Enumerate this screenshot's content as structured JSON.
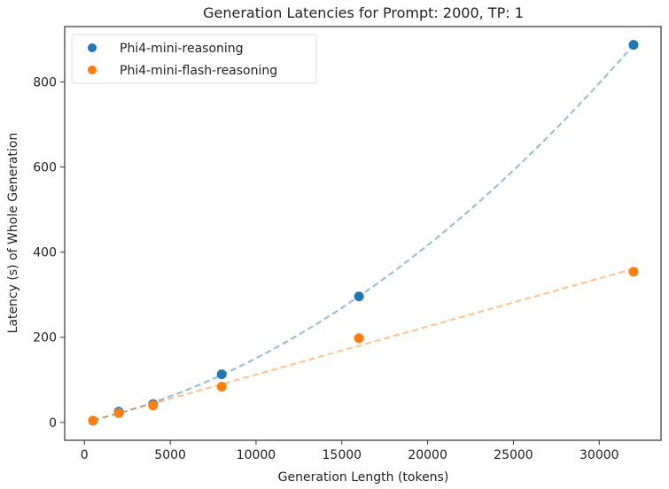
{
  "chart_data": {
    "type": "scatter",
    "title": "Generation Latencies for Prompt: 2000, TP: 1",
    "xlabel": "Generation Length (tokens)",
    "ylabel": "Latency (s) of Whole Generation",
    "xlim": [
      -1150,
      33600
    ],
    "ylim": [
      -42,
      930
    ],
    "xticks": [
      0,
      5000,
      10000,
      15000,
      20000,
      25000,
      30000
    ],
    "yticks": [
      0,
      200,
      400,
      600,
      800
    ],
    "grid": false,
    "legend_position": "top-left",
    "series": [
      {
        "name": "Phi4-mini-reasoning",
        "color": "#1f77b4",
        "fit": "quadratic",
        "x": [
          500,
          2000,
          4000,
          8000,
          16000,
          32000
        ],
        "y": [
          4,
          25,
          43,
          113,
          296,
          887
        ]
      },
      {
        "name": "Phi4-mini-flash-reasoning",
        "color": "#ff7f0e",
        "fit": "linear",
        "x": [
          500,
          2000,
          4000,
          8000,
          16000,
          32000
        ],
        "y": [
          4,
          22,
          40,
          84,
          198,
          354
        ]
      }
    ]
  }
}
